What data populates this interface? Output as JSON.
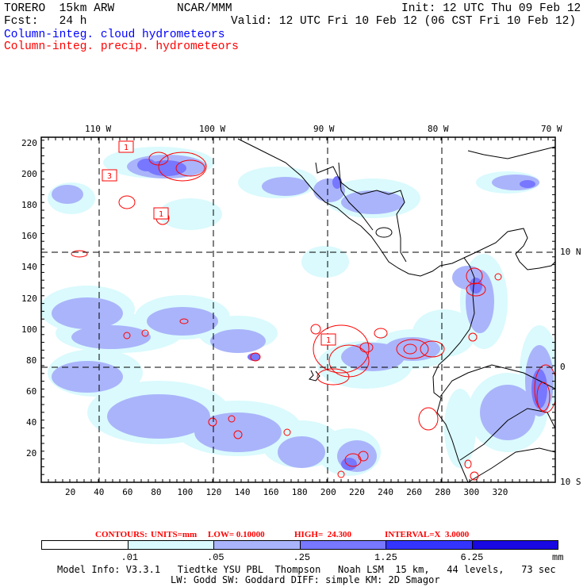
{
  "header": {
    "model": "TORERO  15km ARW",
    "org": "NCAR/MMM",
    "init": "Init: 12 UTC Thu 09 Feb 12",
    "fcst": "Fcst:   24 h",
    "valid": "Valid: 12 UTC Fri 10 Feb 12 (06 CST Fri 10 Feb 12)",
    "field1": "Column-integ. cloud hydrometeors",
    "field2": "Column-integ. precip. hydrometeors"
  },
  "axes": {
    "x_ticks": [
      "20",
      "40",
      "60",
      "80",
      "100",
      "120",
      "140",
      "160",
      "180",
      "200",
      "220",
      "240",
      "260",
      "280",
      "300",
      "320"
    ],
    "y_ticks": [
      "20",
      "40",
      "60",
      "80",
      "100",
      "120",
      "140",
      "160",
      "180",
      "200",
      "220"
    ],
    "lon_labels": [
      "110 W",
      "100 W",
      "90 W",
      "80 W",
      "70 W"
    ],
    "lat_labels": [
      "10 N",
      "0",
      "10 S"
    ]
  },
  "map_labels": {
    "box1": "1",
    "box2": "3",
    "box3": "1",
    "box4": "1"
  },
  "contours": {
    "label": "CONTOURS:",
    "units": "UNITS=mm",
    "low": "LOW= 0.10000",
    "high": "HIGH=  24.300",
    "interval": "INTERVAL=X  3.0000"
  },
  "colorbar": {
    "labels": [
      ".01",
      ".05",
      ".25",
      "1.25",
      "6.25"
    ],
    "units": "mm",
    "colors": [
      "#ffffff",
      "#dafafd",
      "#aab4fa",
      "#7777ff",
      "#3434ff",
      "#1a08e2"
    ]
  },
  "model_info": {
    "line1": "Model Info: V3.3.1   Tiedtke YSU PBL  Thompson   Noah LSM  15 km,   44 levels,   73 sec",
    "line2": "LW: Godd SW: Goddard DIFF: simple KM: 2D Smagor"
  }
}
